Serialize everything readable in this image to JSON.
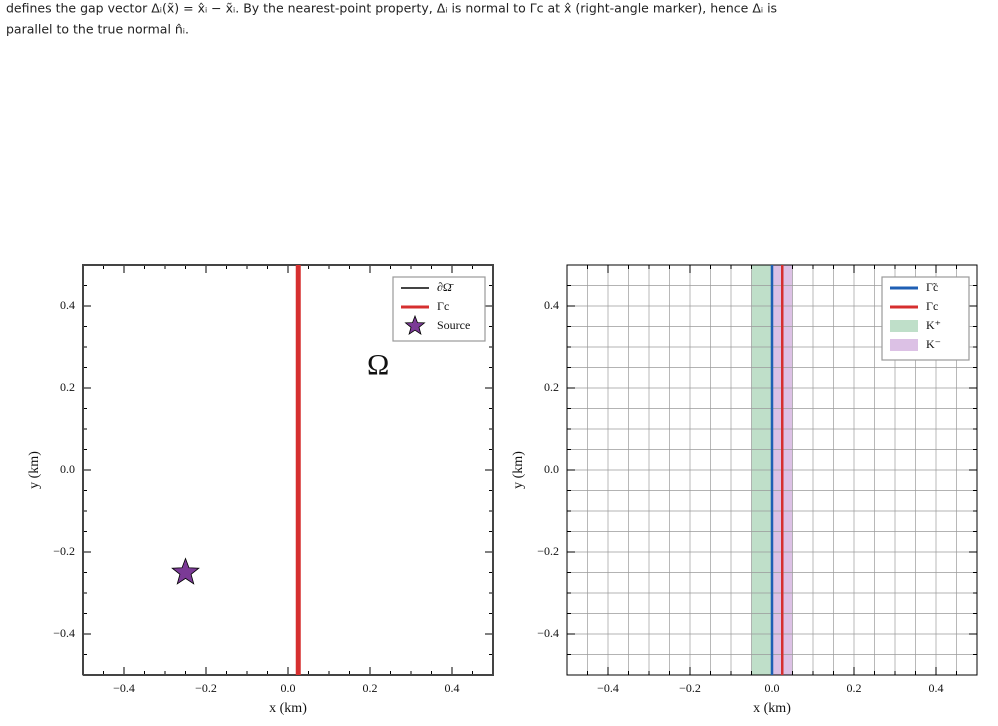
{
  "caption": [
    "defines the gap vector Δᵢ(x̃) = x̂ᵢ − x̃ᵢ. By the nearest-point property, Δᵢ is normal to Γc at x̂ (right-angle marker), hence Δᵢ is",
    "parallel to the true normal n̂ᵢ."
  ],
  "chart_data": [
    {
      "type": "line",
      "xlabel": "x (km)",
      "ylabel": "y (km)",
      "xlim": [
        -0.5,
        0.5
      ],
      "ylim": [
        -0.5,
        0.5
      ],
      "xticks": [
        {
          "value": -0.4,
          "label": "−0.4"
        },
        {
          "value": -0.2,
          "label": "−0.2"
        },
        {
          "value": 0,
          "label": "0.0"
        },
        0.2,
        0.4
      ],
      "yticks": [
        {
          "value": -0.4,
          "label": "−0.4"
        },
        {
          "value": -0.2,
          "label": "−0.2"
        },
        {
          "value": 0,
          "label": "0.0"
        },
        0.2,
        0.4
      ],
      "xminorticks": [
        -0.45,
        -0.4,
        -0.35,
        -0.3,
        -0.25,
        -0.2,
        -0.15,
        -0.1,
        -0.05,
        0,
        0.05,
        0.1,
        0.15,
        0.2,
        0.25,
        0.3,
        0.35,
        0.4,
        0.45
      ],
      "yminorticks": [
        -0.45,
        -0.4,
        -0.35,
        -0.3,
        -0.25,
        -0.2,
        -0.15,
        -0.1,
        -0.05,
        0,
        0.05,
        0.1,
        0.15,
        0.2,
        0.25,
        0.3,
        0.35,
        0.4,
        0.45
      ],
      "grid": false,
      "legend": "upper right",
      "annotation": {
        "text": "Ω",
        "x": 0.22,
        "y": 0.25
      },
      "series": [
        {
          "name": "∂Ω̄",
          "type": "line",
          "color": "#444444",
          "x": [
            -0.5,
            0.5,
            0.5,
            -0.5,
            -0.5
          ],
          "y": [
            -0.5,
            -0.5,
            0.5,
            0.5,
            -0.5
          ]
        },
        {
          "name": "Γc",
          "type": "line",
          "color": "#d62f2f",
          "x": [
            0.025,
            0.025
          ],
          "y": [
            -0.5,
            0.5
          ]
        },
        {
          "name": "Source",
          "type": "scatter",
          "color": "#7b3a96",
          "x": [
            -0.25
          ],
          "y": [
            -0.25
          ]
        }
      ]
    },
    {
      "type": "line",
      "xlabel": "x (km)",
      "ylabel": "y (km)",
      "xlim": [
        -0.5,
        0.5
      ],
      "ylim": [
        -0.5,
        0.5
      ],
      "xticks": [
        {
          "value": -0.4,
          "label": "−0.4"
        },
        {
          "value": -0.2,
          "label": "−0.2"
        },
        {
          "value": 0,
          "label": "0.0"
        },
        0.2,
        0.4
      ],
      "yticks": [
        {
          "value": -0.4,
          "label": "−0.4"
        },
        {
          "value": -0.2,
          "label": "−0.2"
        },
        {
          "value": 0,
          "label": "0.0"
        },
        0.2,
        0.4
      ],
      "xminorticks": [
        -0.45,
        -0.4,
        -0.35,
        -0.3,
        -0.25,
        -0.2,
        -0.15,
        -0.1,
        -0.05,
        0,
        0.05,
        0.1,
        0.15,
        0.2,
        0.25,
        0.3,
        0.35,
        0.4,
        0.45
      ],
      "yminorticks": [
        -0.45,
        -0.4,
        -0.35,
        -0.3,
        -0.25,
        -0.2,
        -0.15,
        -0.1,
        -0.05,
        0,
        0.05,
        0.1,
        0.15,
        0.2,
        0.25,
        0.3,
        0.35,
        0.4,
        0.45
      ],
      "grid": true,
      "legend": "upper right",
      "series": [
        {
          "name": "Γ̃c",
          "type": "line",
          "color": "#1f5fb4",
          "x": [
            0,
            0
          ],
          "y": [
            -0.5,
            0.5
          ]
        },
        {
          "name": "Γc",
          "type": "line",
          "color": "#d62f2f",
          "x": [
            0.025,
            0.025
          ],
          "y": [
            -0.5,
            0.5
          ]
        },
        {
          "name": "K⁺",
          "type": "span",
          "color": "#7fbf94",
          "x": [
            -0.05,
            0
          ]
        },
        {
          "name": "K⁻",
          "type": "span",
          "color": "#b983cc",
          "x": [
            0,
            0.05
          ]
        }
      ]
    }
  ]
}
